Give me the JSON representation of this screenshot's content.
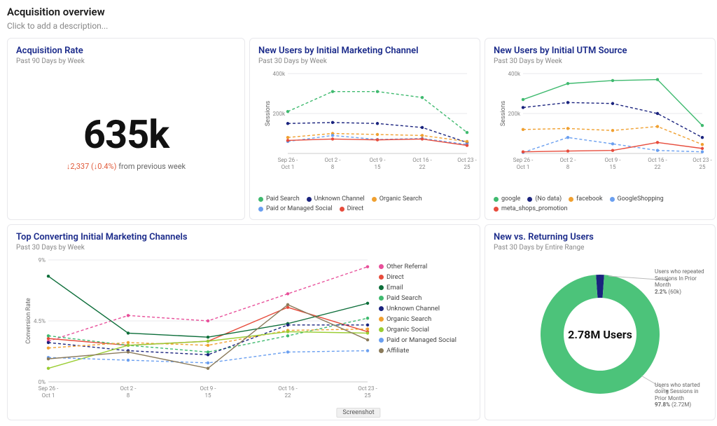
{
  "page": {
    "title": "Acquisition overview",
    "description_placeholder": "Click to add a description..."
  },
  "acquisition_rate": {
    "title": "Acquisition Rate",
    "subtitle": "Past 90 Days by Week",
    "value": "635k",
    "delta_value": "↓2,337",
    "delta_pct": "(↓0.4%)",
    "delta_suffix": " from previous week",
    "delta_color": "#e05a3a"
  },
  "marketing_channel": {
    "title": "New Users by Initial Marketing Channel",
    "subtitle": "Past 30 Days by Week",
    "type": "line",
    "y_axis_label": "Sessions",
    "ylim": [
      0,
      400000
    ],
    "yticks": [
      0,
      200000,
      400000
    ],
    "ytick_labels": [
      "",
      "200k",
      "400k"
    ],
    "categories": [
      "Sep 26 - Oct 1",
      "Oct 2 - 8",
      "Oct 9 - 15",
      "Oct 16 - 22",
      "Oct 23 - 25"
    ],
    "series": [
      {
        "name": "Paid Search",
        "color": "#3fba6f",
        "dash": "4 3",
        "values": [
          210000,
          310000,
          310000,
          280000,
          105000
        ]
      },
      {
        "name": "Unknown Channel",
        "color": "#1a237e",
        "dash": "4 3",
        "values": [
          150000,
          155000,
          150000,
          130000,
          55000
        ]
      },
      {
        "name": "Organic Search",
        "color": "#f0a030",
        "dash": "4 3",
        "values": [
          80000,
          100000,
          95000,
          90000,
          60000
        ]
      },
      {
        "name": "Paid or Managed Social",
        "color": "#6a9ff0",
        "dash": "4 3",
        "values": [
          60000,
          90000,
          70000,
          75000,
          45000
        ]
      },
      {
        "name": "Direct",
        "color": "#e74c3c",
        "dash": "none",
        "values": [
          65000,
          72000,
          68000,
          72000,
          40000
        ]
      }
    ],
    "grid_color": "#e8e8ec",
    "background_color": "#ffffff"
  },
  "utm_source": {
    "title": "New Users by Initial UTM Source",
    "subtitle": "Past 30 Days by Week",
    "type": "line",
    "y_axis_label": "Sessions",
    "ylim": [
      0,
      400000
    ],
    "yticks": [
      0,
      200000,
      400000
    ],
    "ytick_labels": [
      "",
      "200k",
      "400k"
    ],
    "categories": [
      "Sep 26 - Oct 1",
      "Oct 2 - 8",
      "Oct 9 - 15",
      "Oct 16 - 22",
      "Oct 23 - 25"
    ],
    "series": [
      {
        "name": "google",
        "color": "#3fba6f",
        "dash": "none",
        "values": [
          270000,
          350000,
          365000,
          370000,
          140000
        ]
      },
      {
        "name": "(No data)",
        "color": "#1a237e",
        "dash": "4 3",
        "values": [
          230000,
          255000,
          250000,
          200000,
          80000
        ]
      },
      {
        "name": "facebook",
        "color": "#f0a030",
        "dash": "4 3",
        "values": [
          120000,
          125000,
          115000,
          135000,
          45000
        ]
      },
      {
        "name": "GoogleShopping",
        "color": "#6a9ff0",
        "dash": "4 3",
        "values": [
          5000,
          80000,
          48000,
          15000,
          8000
        ]
      },
      {
        "name": "meta_shops_promotion",
        "color": "#e74c3c",
        "dash": "none",
        "values": [
          8000,
          12000,
          15000,
          55000,
          25000
        ]
      }
    ],
    "grid_color": "#e8e8ec",
    "background_color": "#ffffff"
  },
  "top_converting": {
    "title": "Top Converting Initial Marketing Channels",
    "subtitle": "Past 30 Days by Week",
    "type": "line",
    "y_axis_label": "Conversion Rate",
    "ylim": [
      0,
      9
    ],
    "yticks": [
      0,
      4.5,
      9
    ],
    "ytick_labels": [
      "0%",
      "4.5%",
      "9%"
    ],
    "categories": [
      "Sep 26 - Oct 1",
      "Oct 2 - 8",
      "Oct 9 - 15",
      "Oct 16 - 22",
      "Oct 23 - 25"
    ],
    "series": [
      {
        "name": "Other Referral",
        "color": "#e84f9a",
        "dash": "4 3",
        "values": [
          3.0,
          4.9,
          4.5,
          6.5,
          8.5
        ]
      },
      {
        "name": "Direct",
        "color": "#e74c3c",
        "dash": "none",
        "values": [
          3.2,
          2.7,
          3.0,
          5.5,
          3.7
        ]
      },
      {
        "name": "Email",
        "color": "#0d6e3a",
        "dash": "none",
        "values": [
          7.8,
          3.6,
          3.3,
          4.3,
          5.8
        ]
      },
      {
        "name": "Paid Search",
        "color": "#3fba6f",
        "dash": "4 3",
        "values": [
          3.4,
          2.7,
          2.2,
          3.4,
          4.7
        ]
      },
      {
        "name": "Unknown Channel",
        "color": "#1a237e",
        "dash": "4 3",
        "values": [
          2.9,
          2.3,
          2.0,
          4.2,
          4.2
        ]
      },
      {
        "name": "Organic Search",
        "color": "#f0a030",
        "dash": "4 3",
        "values": [
          2.5,
          2.9,
          2.7,
          3.8,
          3.9
        ]
      },
      {
        "name": "Organic Social",
        "color": "#9acd32",
        "dash": "none",
        "values": [
          1.0,
          2.7,
          3.0,
          3.7,
          3.6
        ]
      },
      {
        "name": "Paid or Managed Social",
        "color": "#6a9ff0",
        "dash": "4 3",
        "values": [
          1.8,
          1.6,
          1.4,
          2.2,
          2.3
        ]
      },
      {
        "name": "Affiliate",
        "color": "#8a7a5a",
        "dash": "none",
        "values": [
          1.7,
          2.2,
          1.0,
          5.7,
          3.1
        ]
      }
    ],
    "grid_color": "#e8e8ec",
    "background_color": "#ffffff"
  },
  "new_vs_returning": {
    "title": "New vs. Returning Users",
    "subtitle": "Past 30 Days by Entire Range",
    "type": "donut",
    "center_value": "2.78M Users",
    "slices": [
      {
        "name": "Users who repeated Sessions In Prior Month",
        "pct": 2.2,
        "count_label": "(60k)",
        "color": "#1a237e"
      },
      {
        "name": "Users who started doing Sessions in Prior Month",
        "pct": 97.8,
        "count_label": "(2.72M)",
        "color": "#4cc37a"
      }
    ],
    "background_color": "#ffffff"
  },
  "footer_tag": "Screenshot"
}
